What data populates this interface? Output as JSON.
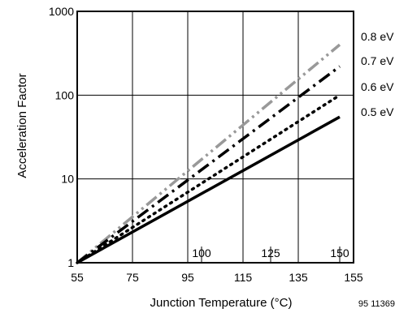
{
  "chart_data": {
    "type": "line",
    "xlabel": "Junction Temperature (°C)",
    "ylabel": "Acceleration Factor",
    "x_scale": "linear",
    "y_scale": "log",
    "xlim": [
      55,
      155
    ],
    "ylim": [
      1,
      1000
    ],
    "x_ticks": [
      "55",
      "75",
      "95",
      "115",
      "135",
      "155"
    ],
    "y_ticks": [
      "1",
      "10",
      "100",
      "1000"
    ],
    "inner_ticks": [
      "100",
      "125",
      "150"
    ],
    "grid": true,
    "series": [
      {
        "name": "0.8 eV",
        "x": [
          55,
          150
        ],
        "y": [
          1,
          400
        ],
        "color": "#999999",
        "dash": "long-dash-dot-dot"
      },
      {
        "name": "0.7 eV",
        "x": [
          55,
          150
        ],
        "y": [
          1,
          220
        ],
        "color": "#000000",
        "dash": "long-dash-dot"
      },
      {
        "name": "0.6 eV",
        "x": [
          55,
          150
        ],
        "y": [
          1,
          100
        ],
        "color": "#000000",
        "dash": "dotted"
      },
      {
        "name": "0.5 eV",
        "x": [
          55,
          150
        ],
        "y": [
          1,
          55
        ],
        "color": "#000000",
        "dash": "solid"
      }
    ],
    "annotation": "95 11369"
  }
}
